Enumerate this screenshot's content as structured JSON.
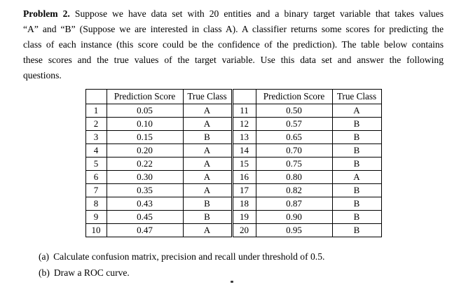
{
  "page": {
    "background": "#ffffff",
    "text_color": "#000000"
  },
  "problem": {
    "label": "Problem 2.",
    "lines": [
      "Suppose we have data set with 20 entities and a binary target variable that takes values",
      "“A” and “B” (Suppose we are interested in class A). A classifier returns some scores for predicting the",
      "class of each instance (this score could be the confidence of the prediction). The table below contains",
      "these scores and the true values of the target variable. Use this data set and answer the following",
      "questions."
    ]
  },
  "table": {
    "headers": [
      "",
      "Prediction Score",
      "True Class",
      "",
      "Prediction Score",
      "True Class"
    ],
    "rows": [
      [
        "1",
        "0.05",
        "A",
        "11",
        "0.50",
        "A"
      ],
      [
        "2",
        "0.10",
        "A",
        "12",
        "0.57",
        "B"
      ],
      [
        "3",
        "0.15",
        "B",
        "13",
        "0.65",
        "B"
      ],
      [
        "4",
        "0.20",
        "A",
        "14",
        "0.70",
        "B"
      ],
      [
        "5",
        "0.22",
        "A",
        "15",
        "0.75",
        "B"
      ],
      [
        "6",
        "0.30",
        "A",
        "16",
        "0.80",
        "A"
      ],
      [
        "7",
        "0.35",
        "A",
        "17",
        "0.82",
        "B"
      ],
      [
        "8",
        "0.43",
        "B",
        "18",
        "0.87",
        "B"
      ],
      [
        "9",
        "0.45",
        "B",
        "19",
        "0.90",
        "B"
      ],
      [
        "10",
        "0.47",
        "A",
        "20",
        "0.95",
        "B"
      ]
    ]
  },
  "questions": {
    "items": [
      {
        "label": "(a)",
        "text": "Calculate confusion matrix, precision and recall under threshold of 0.5."
      },
      {
        "label": "(b)",
        "text": "Draw a ROC curve."
      }
    ]
  }
}
